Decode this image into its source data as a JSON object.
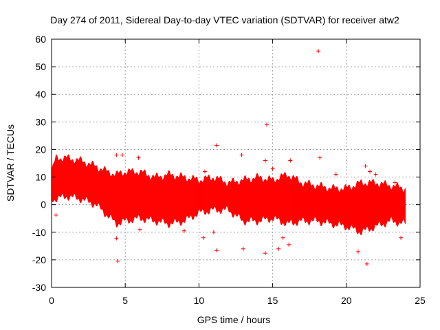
{
  "chart_data": {
    "type": "scatter",
    "title": "Day 274 of 2011, Sidereal Day-to-day VTEC variation (SDTVAR) for receiver atw2",
    "xlabel": "GPS time / hours",
    "ylabel": "SDTVAR / TECUs",
    "xlim": [
      0,
      25
    ],
    "ylim": [
      -30,
      60
    ],
    "xticks": [
      0,
      5,
      10,
      15,
      20,
      25
    ],
    "yticks": [
      -30,
      -20,
      -10,
      0,
      10,
      20,
      30,
      40,
      50,
      60
    ],
    "grid": true,
    "marker": "+",
    "color": "#ff0000",
    "series": [
      {
        "name": "SDTVAR",
        "band": [
          {
            "x": 0.0,
            "low": 2,
            "high": 12
          },
          {
            "x": 0.3,
            "low": 2,
            "high": 17
          },
          {
            "x": 1.0,
            "low": 3,
            "high": 17
          },
          {
            "x": 2.0,
            "low": 2,
            "high": 16
          },
          {
            "x": 3.0,
            "low": 0,
            "high": 14
          },
          {
            "x": 3.8,
            "low": -4,
            "high": 12
          },
          {
            "x": 4.4,
            "low": -7,
            "high": 11
          },
          {
            "x": 5.0,
            "low": -6,
            "high": 12
          },
          {
            "x": 6.0,
            "low": -5,
            "high": 12
          },
          {
            "x": 7.0,
            "low": -6,
            "high": 10
          },
          {
            "x": 8.0,
            "low": -7,
            "high": 11
          },
          {
            "x": 9.0,
            "low": -6,
            "high": 10
          },
          {
            "x": 10.0,
            "low": -3,
            "high": 9
          },
          {
            "x": 11.0,
            "low": -2,
            "high": 10
          },
          {
            "x": 12.0,
            "low": -2,
            "high": 8
          },
          {
            "x": 13.0,
            "low": -6,
            "high": 9
          },
          {
            "x": 14.0,
            "low": -6,
            "high": 10
          },
          {
            "x": 15.0,
            "low": -5,
            "high": 9
          },
          {
            "x": 16.0,
            "low": -7,
            "high": 11
          },
          {
            "x": 17.0,
            "low": -6,
            "high": 8
          },
          {
            "x": 18.0,
            "low": -6,
            "high": 7
          },
          {
            "x": 19.0,
            "low": -7,
            "high": 6
          },
          {
            "x": 20.0,
            "low": -8,
            "high": 6
          },
          {
            "x": 21.0,
            "low": -10,
            "high": 8
          },
          {
            "x": 22.0,
            "low": -8,
            "high": 8
          },
          {
            "x": 23.0,
            "low": -6,
            "high": 7
          },
          {
            "x": 24.0,
            "low": -7,
            "high": 6
          }
        ],
        "points": [
          {
            "x": 18.1,
            "y": 55.7
          },
          {
            "x": 14.6,
            "y": 29
          },
          {
            "x": 18.2,
            "y": 17
          },
          {
            "x": 11.2,
            "y": 21.5
          },
          {
            "x": 0.3,
            "y": -3.8
          },
          {
            "x": 4.4,
            "y": -12.2
          },
          {
            "x": 4.5,
            "y": -20.5
          },
          {
            "x": 4.4,
            "y": 18
          },
          {
            "x": 4.8,
            "y": 18
          },
          {
            "x": 11.2,
            "y": -16.6
          },
          {
            "x": 14.5,
            "y": -17.6
          },
          {
            "x": 15.4,
            "y": -16
          },
          {
            "x": 15.7,
            "y": -12
          },
          {
            "x": 16.1,
            "y": -14.5
          },
          {
            "x": 21.4,
            "y": -21.5
          },
          {
            "x": 20.8,
            "y": -17
          },
          {
            "x": 21.3,
            "y": 14
          },
          {
            "x": 13.0,
            "y": -16
          },
          {
            "x": 10.3,
            "y": -12
          },
          {
            "x": 9.0,
            "y": -9.5
          },
          {
            "x": 6.0,
            "y": -9
          },
          {
            "x": 10.4,
            "y": 12
          },
          {
            "x": 14.5,
            "y": 16
          },
          {
            "x": 15.0,
            "y": 13
          },
          {
            "x": 16.2,
            "y": 16
          },
          {
            "x": 19.3,
            "y": 11
          },
          {
            "x": 21.6,
            "y": 12
          },
          {
            "x": 22.0,
            "y": 11
          },
          {
            "x": 23.3,
            "y": 8
          },
          {
            "x": 23.7,
            "y": -12
          },
          {
            "x": 11.0,
            "y": -10
          },
          {
            "x": 12.9,
            "y": 18
          },
          {
            "x": 5.9,
            "y": 17
          }
        ]
      }
    ]
  }
}
